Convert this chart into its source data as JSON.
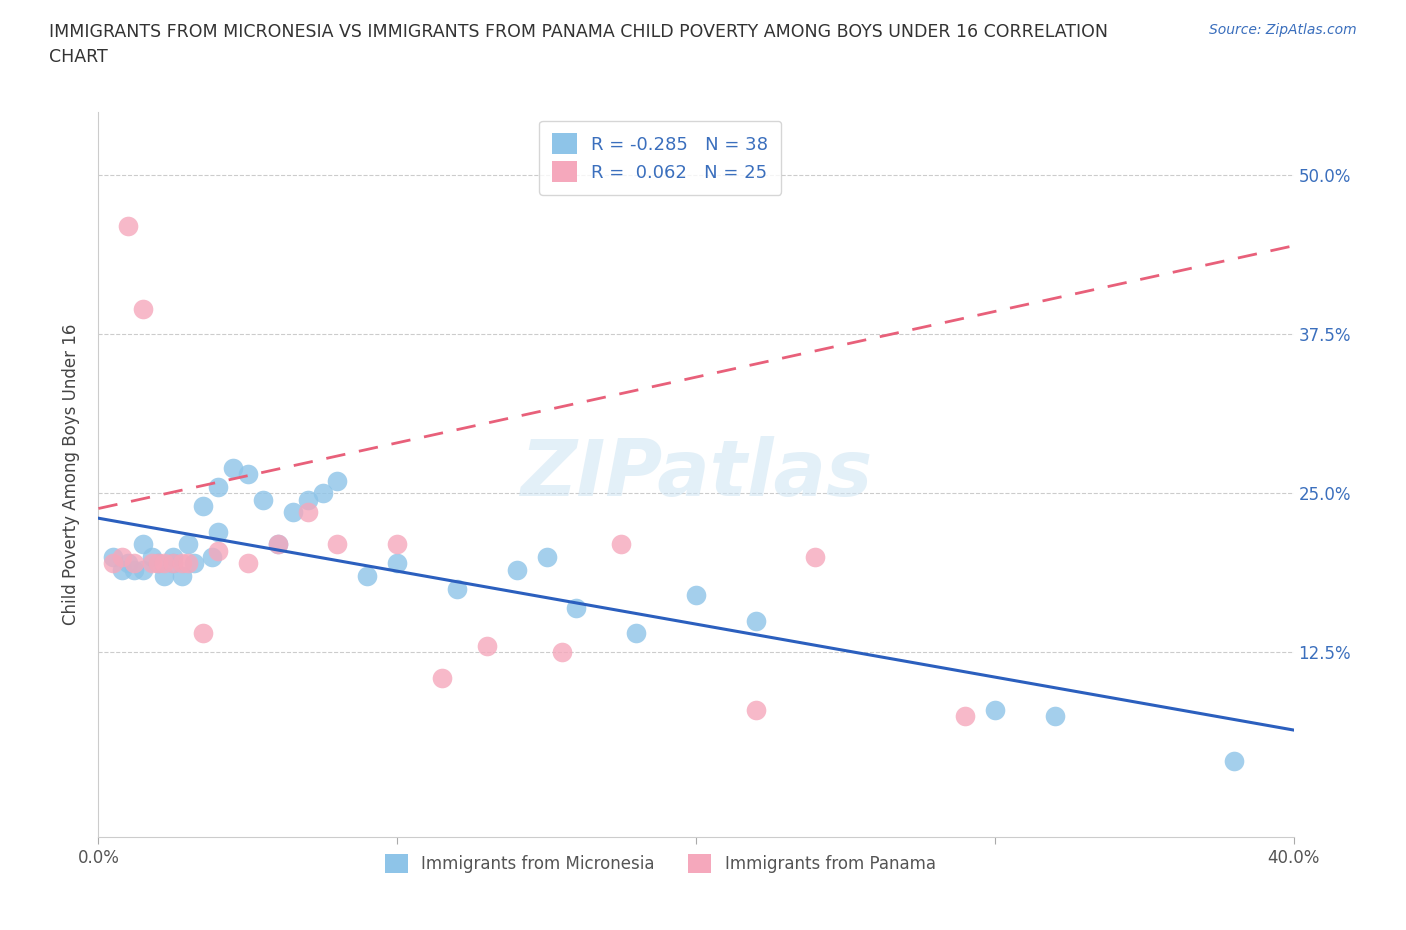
{
  "title": "IMMIGRANTS FROM MICRONESIA VS IMMIGRANTS FROM PANAMA CHILD POVERTY AMONG BOYS UNDER 16 CORRELATION\nCHART",
  "source_text": "Source: ZipAtlas.com",
  "ylabel": "Child Poverty Among Boys Under 16",
  "xlim": [
    0.0,
    0.4
  ],
  "ylim": [
    -0.02,
    0.55
  ],
  "yticks": [
    0.0,
    0.125,
    0.25,
    0.375,
    0.5
  ],
  "ytick_labels": [
    "",
    "12.5%",
    "25.0%",
    "37.5%",
    "50.0%"
  ],
  "xticks": [
    0.0,
    0.1,
    0.2,
    0.3,
    0.4
  ],
  "xtick_labels": [
    "0.0%",
    "",
    "",
    "",
    "40.0%"
  ],
  "r_micronesia": -0.285,
  "n_micronesia": 38,
  "r_panama": 0.062,
  "n_panama": 25,
  "color_micronesia": "#8ec4e8",
  "color_panama": "#f5a8bc",
  "line_color_micronesia": "#2b5fbe",
  "line_color_panama": "#e8607a",
  "watermark": "ZIPatlas",
  "micronesia_x": [
    0.005,
    0.008,
    0.01,
    0.012,
    0.015,
    0.015,
    0.018,
    0.02,
    0.022,
    0.025,
    0.025,
    0.028,
    0.03,
    0.032,
    0.035,
    0.038,
    0.04,
    0.04,
    0.045,
    0.05,
    0.055,
    0.06,
    0.065,
    0.07,
    0.075,
    0.08,
    0.09,
    0.1,
    0.12,
    0.14,
    0.15,
    0.16,
    0.18,
    0.2,
    0.22,
    0.3,
    0.32,
    0.38
  ],
  "micronesia_y": [
    0.2,
    0.19,
    0.195,
    0.19,
    0.21,
    0.19,
    0.2,
    0.195,
    0.185,
    0.195,
    0.2,
    0.185,
    0.21,
    0.195,
    0.24,
    0.2,
    0.255,
    0.22,
    0.27,
    0.265,
    0.245,
    0.21,
    0.235,
    0.245,
    0.25,
    0.26,
    0.185,
    0.195,
    0.175,
    0.19,
    0.2,
    0.16,
    0.14,
    0.17,
    0.15,
    0.08,
    0.075,
    0.04
  ],
  "panama_x": [
    0.005,
    0.008,
    0.01,
    0.012,
    0.015,
    0.018,
    0.02,
    0.022,
    0.025,
    0.028,
    0.03,
    0.035,
    0.04,
    0.05,
    0.06,
    0.07,
    0.08,
    0.1,
    0.115,
    0.13,
    0.155,
    0.175,
    0.22,
    0.24,
    0.29
  ],
  "panama_y": [
    0.195,
    0.2,
    0.46,
    0.195,
    0.395,
    0.195,
    0.195,
    0.195,
    0.195,
    0.195,
    0.195,
    0.14,
    0.205,
    0.195,
    0.21,
    0.235,
    0.21,
    0.21,
    0.105,
    0.13,
    0.125,
    0.21,
    0.08,
    0.2,
    0.075
  ]
}
